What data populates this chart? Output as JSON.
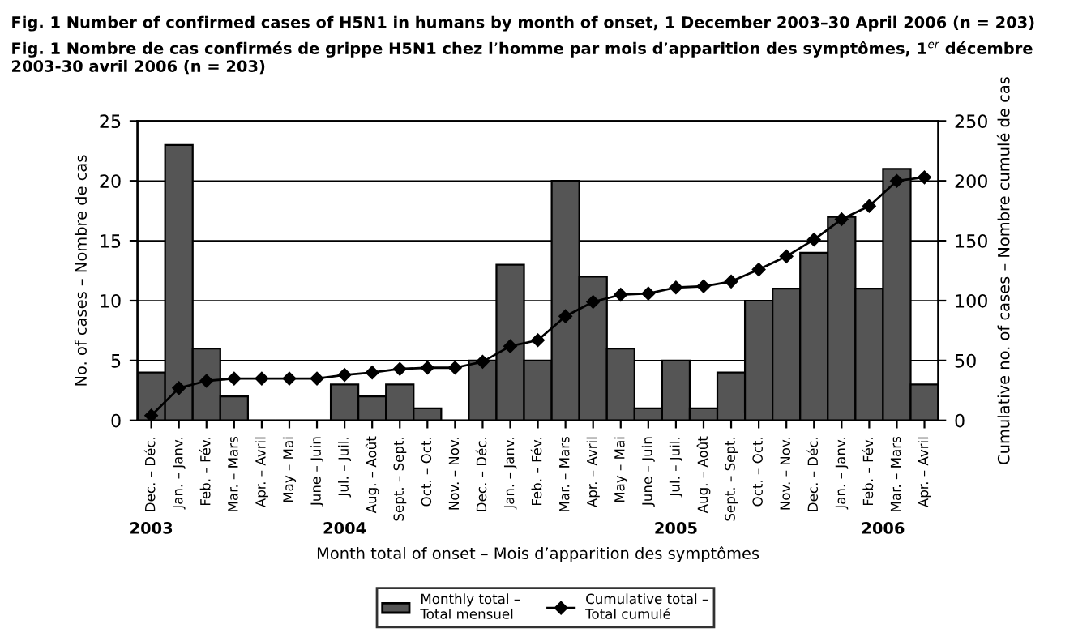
{
  "chart_data": {
    "type": "bar",
    "title": "Fig. 1 Number of confirmed cases of H5N1 in humans by month of onset, 1 December 2003–30 April 2006 (n = 203)",
    "subtitle": "Fig. 1 Nombre de cas confirmés de grippe H5N1 chez l’homme par mois d’apparition des symptômes, 1$^{er}$ décembre 2003-30 avril 2006 (n = 203)",
    "xlabel": "Month total of onset – Mois d’apparition des symptômes",
    "ylabel": "No. of cases – Nombre de cas",
    "y2label": "Cumulative no. of cases – Nombre cumulé de cas",
    "categories": [
      "Dec. – Déc.",
      "Jan. – Janv.",
      "Feb. – Fév.",
      "Mar. – Mars",
      "Apr. – Avril",
      "May – Mai",
      "June – Juin",
      "Jul. – Juil.",
      "Aug. – Août",
      "Sept. – Sept.",
      "Oct. – Oct.",
      "Nov. – Nov.",
      "Dec. – Déc.",
      "Jan. – Janv.",
      "Feb. – Fév.",
      "Mar. – Mars",
      "Apr. – Avril",
      "May – Mai",
      "June – Juin",
      "Jul. – Juil.",
      "Aug. – Août",
      "Sept. – Sept.",
      "Oct. – Oct.",
      "Nov. – Nov.",
      "Dec. – Déc.",
      "Jan. – Janv.",
      "Feb. – Fév.",
      "Mar. – Mars",
      "Apr. – Avril"
    ],
    "series": [
      {
        "name": "Monthly total –\nTotal mensuel",
        "color": "#555555",
        "values": [
          4,
          23,
          6,
          2,
          0,
          0,
          0,
          3,
          2,
          3,
          1,
          0,
          5,
          13,
          5,
          20,
          12,
          6,
          1,
          5,
          1,
          4,
          10,
          11,
          14,
          17,
          11,
          21,
          3
        ]
      },
      {
        "name": "Cumulative total –\nTotal cumulé",
        "type": "line",
        "axis": "y2",
        "color": "#000000",
        "marker": "diamond",
        "values": [
          4,
          27,
          33,
          35,
          35,
          35,
          35,
          38,
          40,
          43,
          44,
          44,
          49,
          62,
          67,
          87,
          99,
          105,
          106,
          111,
          112,
          116,
          126,
          137,
          151,
          168,
          179,
          200,
          203
        ]
      }
    ],
    "annotations": [
      "2003",
      "2004",
      "2005",
      "2006"
    ],
    "ylim": [
      0,
      25
    ],
    "yticks": [
      0,
      5,
      10,
      15,
      20,
      25
    ],
    "y2lim": [
      0,
      250
    ],
    "y2ticks": [
      0,
      50,
      100,
      150,
      200,
      250
    ],
    "grid": "y",
    "legend": "bottom"
  }
}
